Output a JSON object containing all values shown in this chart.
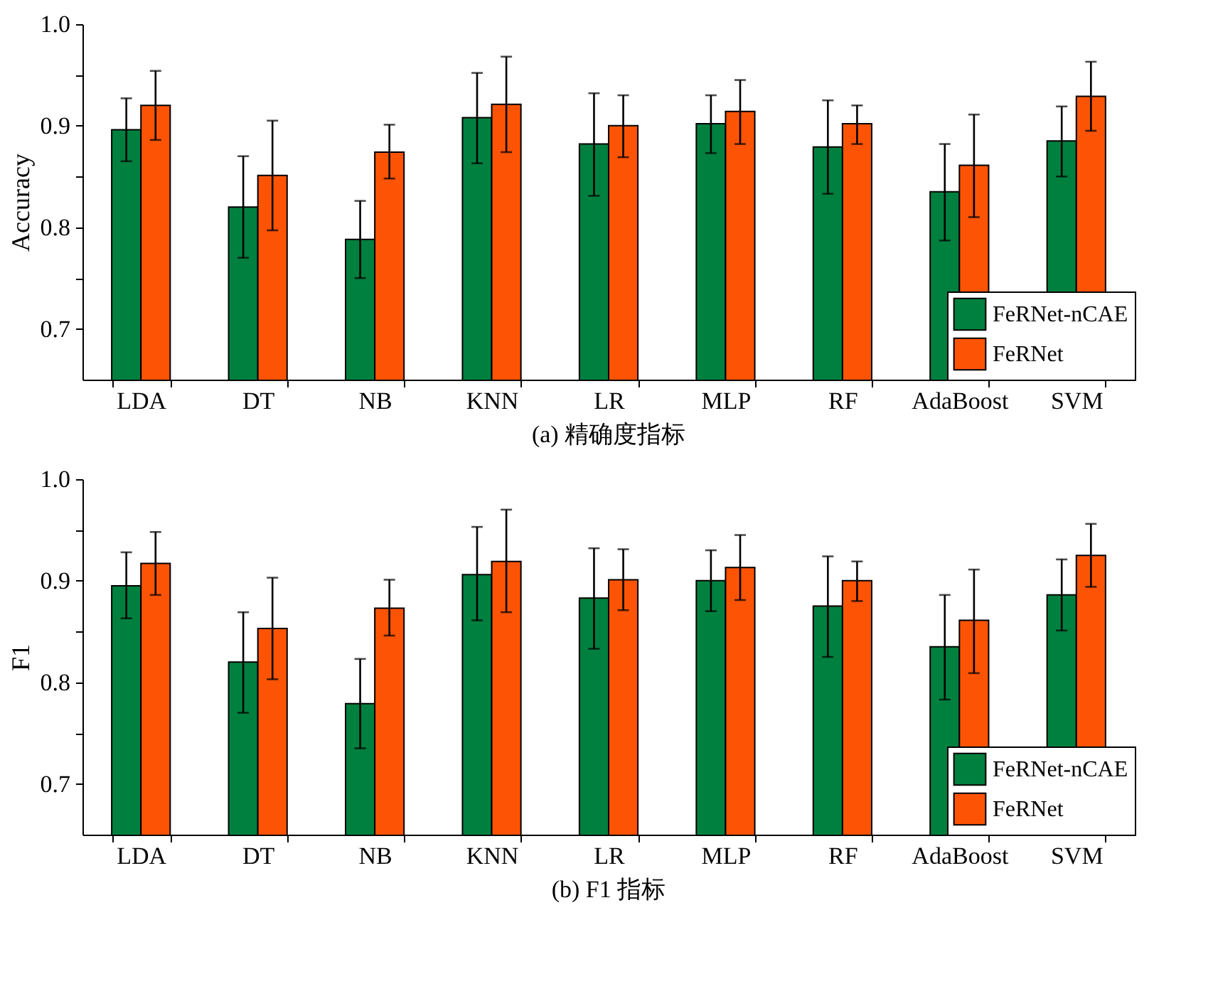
{
  "chart_data": [
    {
      "type": "bar",
      "title": "(a)  精确度指标",
      "ylabel": "Accuracy",
      "categories": [
        "LDA",
        "DT",
        "NB",
        "KNN",
        "LR",
        "MLP",
        "RF",
        "AdaBoost",
        "SVM"
      ],
      "series": [
        {
          "name": "FeRNet-nCAE",
          "color": "#00803f",
          "values": [
            0.896,
            0.82,
            0.788,
            0.908,
            0.882,
            0.902,
            0.879,
            0.835,
            0.885
          ],
          "errors": [
            [
              0.865,
              0.927
            ],
            [
              0.77,
              0.87
            ],
            [
              0.75,
              0.826
            ],
            [
              0.863,
              0.952
            ],
            [
              0.831,
              0.932
            ],
            [
              0.873,
              0.93
            ],
            [
              0.833,
              0.925
            ],
            [
              0.787,
              0.882
            ],
            [
              0.85,
              0.919
            ]
          ]
        },
        {
          "name": "FeRNet",
          "color": "#fc5404",
          "values": [
            0.92,
            0.851,
            0.874,
            0.921,
            0.9,
            0.914,
            0.902,
            0.861,
            0.929
          ],
          "errors": [
            [
              0.886,
              0.954
            ],
            [
              0.797,
              0.905
            ],
            [
              0.848,
              0.901
            ],
            [
              0.874,
              0.968
            ],
            [
              0.869,
              0.93
            ],
            [
              0.882,
              0.945
            ],
            [
              0.882,
              0.92
            ],
            [
              0.81,
              0.911
            ],
            [
              0.895,
              0.963
            ]
          ]
        }
      ],
      "ylim": [
        0.65,
        1.0
      ],
      "yticks": [
        0.7,
        {
          "value": 0.75,
          "label": null
        },
        0.8,
        {
          "value": 0.85,
          "label": null
        },
        0.9,
        {
          "value": 0.95,
          "label": null
        },
        {
          "value": 1.0,
          "label": "1.0"
        }
      ],
      "grid": false,
      "legend": "bottom right"
    },
    {
      "type": "bar",
      "title": "(b) F1 指标",
      "ylabel": "F1",
      "categories": [
        "LDA",
        "DT",
        "NB",
        "KNN",
        "LR",
        "MLP",
        "RF",
        "AdaBoost",
        "SVM"
      ],
      "series": [
        {
          "name": "FeRNet-nCAE",
          "color": "#00803f",
          "values": [
            0.895,
            0.82,
            0.779,
            0.906,
            0.883,
            0.9,
            0.875,
            0.835,
            0.886
          ],
          "errors": [
            [
              0.863,
              0.928
            ],
            [
              0.77,
              0.869
            ],
            [
              0.735,
              0.823
            ],
            [
              0.861,
              0.953
            ],
            [
              0.833,
              0.932
            ],
            [
              0.87,
              0.93
            ],
            [
              0.825,
              0.924
            ],
            [
              0.783,
              0.886
            ],
            [
              0.851,
              0.921
            ]
          ]
        },
        {
          "name": "FeRNet",
          "color": "#fc5404",
          "values": [
            0.917,
            0.853,
            0.873,
            0.919,
            0.901,
            0.913,
            0.9,
            0.861,
            0.925
          ],
          "errors": [
            [
              0.886,
              0.948
            ],
            [
              0.803,
              0.903
            ],
            [
              0.846,
              0.901
            ],
            [
              0.869,
              0.97
            ],
            [
              0.871,
              0.931
            ],
            [
              0.881,
              0.945
            ],
            [
              0.88,
              0.919
            ],
            [
              0.809,
              0.911
            ],
            [
              0.894,
              0.956
            ]
          ]
        }
      ],
      "ylim": [
        0.65,
        1.0
      ],
      "yticks": [
        0.7,
        {
          "value": 0.75,
          "label": null
        },
        0.8,
        {
          "value": 0.85,
          "label": null
        },
        0.9,
        {
          "value": 0.95,
          "label": null
        },
        {
          "value": 1.0,
          "label": "1.0"
        }
      ],
      "grid": false,
      "legend": "bottom right"
    }
  ]
}
